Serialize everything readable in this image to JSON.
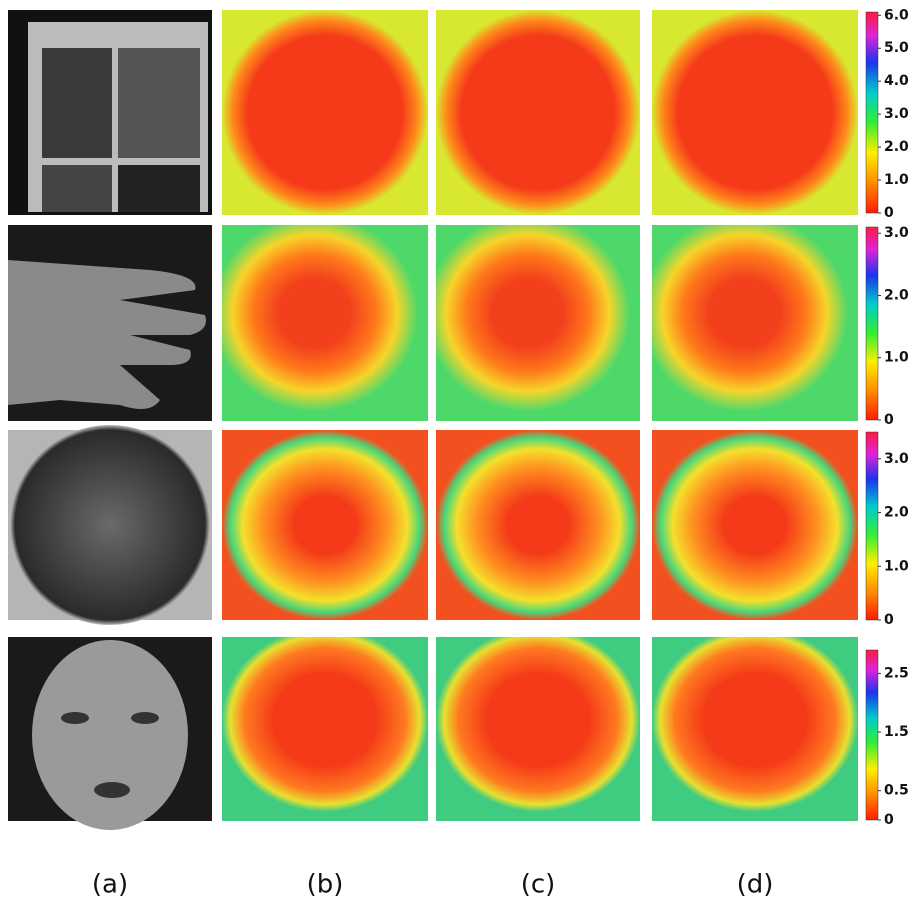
{
  "columns": [
    "(a)",
    "(b)",
    "(c)",
    "(d)"
  ],
  "rows": [
    {
      "colorbar": {
        "lim": [
          0,
          6.1
        ],
        "ticks": [
          0,
          {
            "value": 1,
            "label": "1.0"
          },
          {
            "value": 2,
            "label": "2.0"
          },
          {
            "value": 3,
            "label": "3.0"
          },
          {
            "value": 4,
            "label": "4.0"
          },
          {
            "value": 5,
            "label": "5.0"
          },
          {
            "value": 6,
            "label": "6.0"
          }
        ]
      }
    },
    {
      "colorbar": {
        "lim": [
          0,
          3.1
        ],
        "ticks": [
          0,
          {
            "value": 1,
            "label": "1.0"
          },
          {
            "value": 2,
            "label": "2.0"
          },
          {
            "value": 3,
            "label": "3.0"
          }
        ]
      }
    },
    {
      "colorbar": {
        "lim": [
          0,
          3.5
        ],
        "ticks": [
          0,
          {
            "value": 1,
            "label": "1.0"
          },
          {
            "value": 2,
            "label": "2.0"
          },
          {
            "value": 3,
            "label": "3.0"
          }
        ]
      }
    },
    {
      "colorbar": {
        "lim": [
          0,
          2.9
        ],
        "ticks": [
          0,
          {
            "value": 0.5,
            "label": "0.5"
          },
          {
            "value": 1.5,
            "label": "1.5"
          },
          {
            "value": 2.5,
            "label": "2.5"
          }
        ]
      }
    }
  ]
}
